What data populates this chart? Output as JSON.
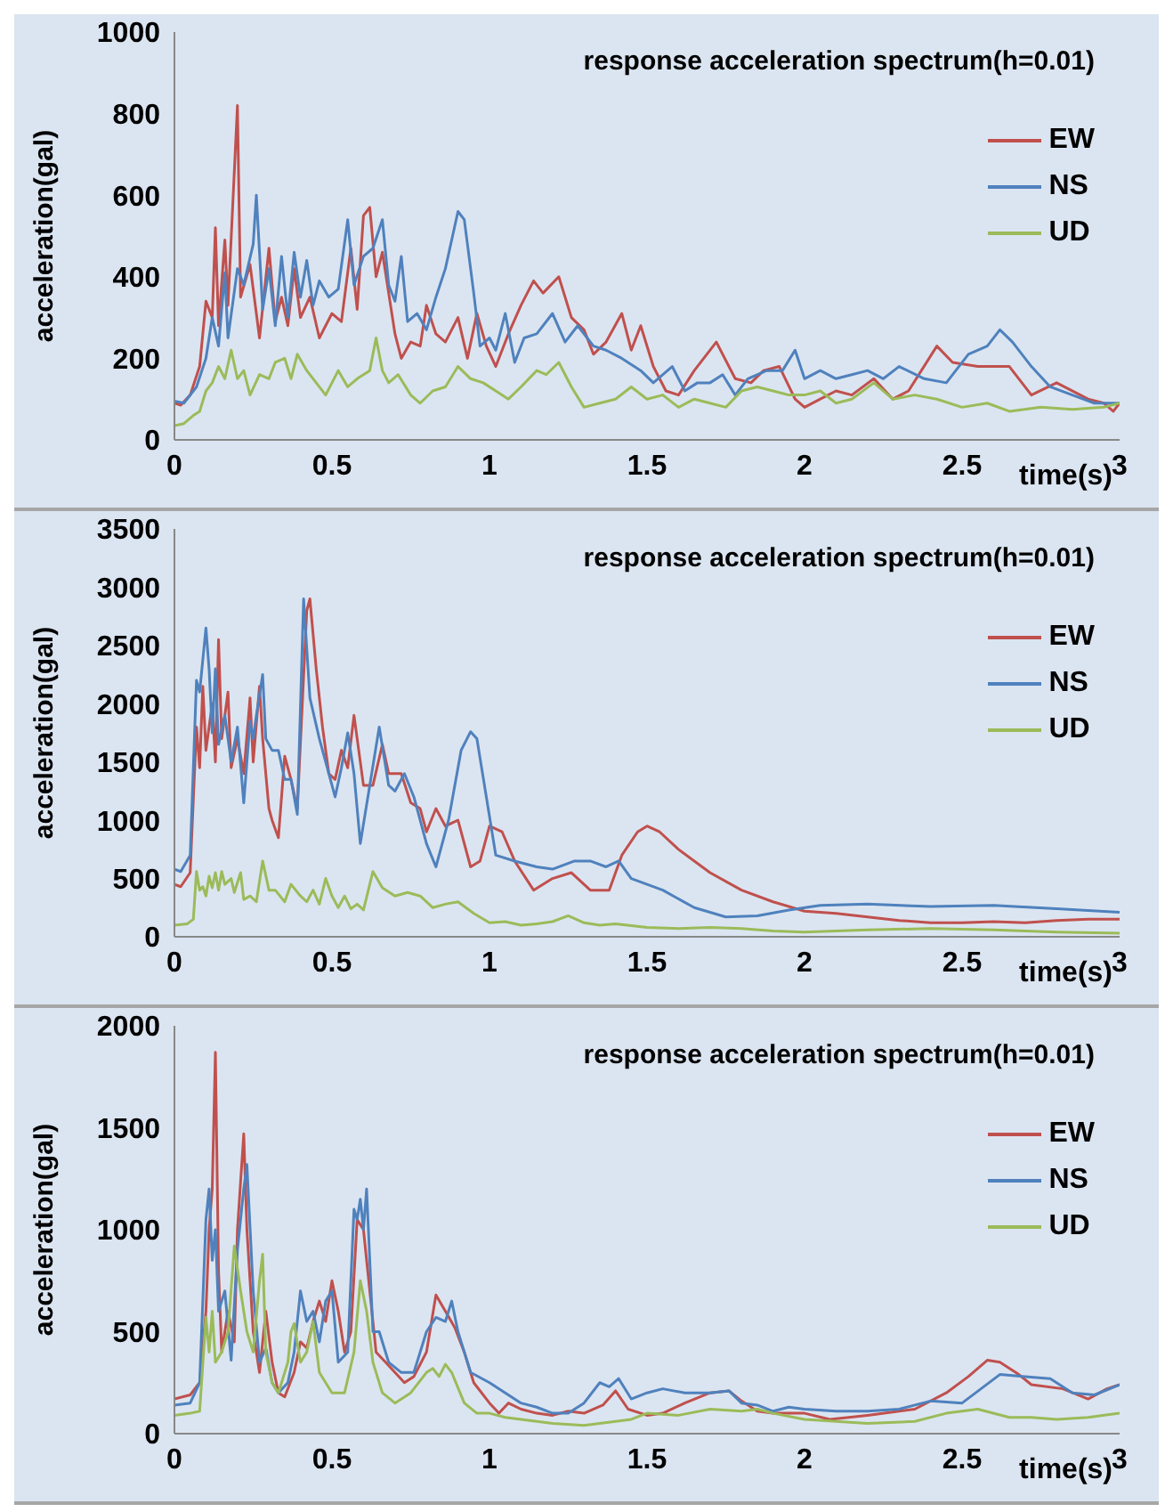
{
  "chart_data": [
    {
      "type": "line",
      "title": "response acceleration spectrum(h=0.01)",
      "xlabel": "time(s)",
      "ylabel": "acceleration(gal)",
      "xlim": [
        0,
        3
      ],
      "xticks": [
        0,
        0.5,
        1,
        1.5,
        2,
        2.5,
        3
      ],
      "ylim": [
        0,
        1000
      ],
      "yticks": [
        0,
        200,
        400,
        600,
        800,
        1000
      ],
      "legend": "top right",
      "marker": "none",
      "series": [
        {
          "name": "EW",
          "color": "#c0504d",
          "x": [
            0,
            0.02,
            0.05,
            0.08,
            0.1,
            0.12,
            0.13,
            0.14,
            0.16,
            0.17,
            0.2,
            0.21,
            0.24,
            0.27,
            0.3,
            0.32,
            0.34,
            0.36,
            0.38,
            0.4,
            0.43,
            0.46,
            0.5,
            0.53,
            0.56,
            0.58,
            0.6,
            0.62,
            0.64,
            0.66,
            0.68,
            0.7,
            0.72,
            0.75,
            0.78,
            0.8,
            0.83,
            0.86,
            0.9,
            0.93,
            0.96,
            0.99,
            1.02,
            1.06,
            1.1,
            1.14,
            1.17,
            1.22,
            1.26,
            1.3,
            1.33,
            1.37,
            1.42,
            1.45,
            1.48,
            1.52,
            1.56,
            1.6,
            1.65,
            1.72,
            1.78,
            1.83,
            1.87,
            1.92,
            1.97,
            2.0,
            2.05,
            2.1,
            2.15,
            2.22,
            2.28,
            2.33,
            2.42,
            2.47,
            2.55,
            2.65,
            2.72,
            2.8,
            2.9,
            2.95,
            2.98,
            3.0
          ],
          "values": [
            90,
            85,
            110,
            180,
            340,
            300,
            520,
            280,
            490,
            330,
            820,
            350,
            430,
            250,
            470,
            290,
            350,
            280,
            420,
            300,
            350,
            250,
            310,
            290,
            470,
            320,
            550,
            570,
            400,
            460,
            360,
            260,
            200,
            240,
            230,
            330,
            260,
            240,
            300,
            200,
            310,
            230,
            180,
            260,
            330,
            390,
            360,
            400,
            300,
            270,
            210,
            240,
            310,
            220,
            280,
            180,
            120,
            110,
            170,
            240,
            150,
            140,
            170,
            180,
            100,
            80,
            100,
            120,
            110,
            150,
            100,
            120,
            230,
            190,
            180,
            180,
            110,
            140,
            100,
            90,
            70,
            90
          ]
        },
        {
          "name": "NS",
          "color": "#4f81bd",
          "x": [
            0,
            0.03,
            0.07,
            0.1,
            0.12,
            0.14,
            0.16,
            0.17,
            0.2,
            0.22,
            0.25,
            0.26,
            0.28,
            0.3,
            0.32,
            0.34,
            0.36,
            0.38,
            0.4,
            0.42,
            0.44,
            0.46,
            0.49,
            0.52,
            0.55,
            0.57,
            0.6,
            0.63,
            0.66,
            0.68,
            0.7,
            0.72,
            0.74,
            0.77,
            0.8,
            0.83,
            0.86,
            0.9,
            0.92,
            0.95,
            0.97,
            1.0,
            1.02,
            1.05,
            1.08,
            1.11,
            1.15,
            1.2,
            1.24,
            1.28,
            1.33,
            1.37,
            1.42,
            1.48,
            1.52,
            1.58,
            1.62,
            1.66,
            1.7,
            1.74,
            1.78,
            1.82,
            1.88,
            1.93,
            1.97,
            2.0,
            2.05,
            2.1,
            2.15,
            2.2,
            2.25,
            2.3,
            2.38,
            2.45,
            2.52,
            2.58,
            2.62,
            2.66,
            2.72,
            2.78,
            2.85,
            2.92,
            3.0
          ],
          "values": [
            95,
            90,
            130,
            200,
            300,
            230,
            410,
            250,
            420,
            380,
            480,
            600,
            320,
            420,
            280,
            450,
            300,
            460,
            350,
            440,
            330,
            390,
            350,
            370,
            540,
            380,
            450,
            470,
            540,
            380,
            340,
            450,
            290,
            310,
            270,
            350,
            420,
            560,
            540,
            360,
            230,
            250,
            220,
            310,
            190,
            250,
            260,
            310,
            240,
            280,
            230,
            220,
            200,
            170,
            140,
            180,
            120,
            140,
            140,
            160,
            110,
            150,
            170,
            170,
            220,
            150,
            170,
            150,
            160,
            170,
            150,
            180,
            150,
            140,
            210,
            230,
            270,
            240,
            180,
            130,
            110,
            90,
            90
          ]
        },
        {
          "name": "UD",
          "color": "#9bbb59",
          "x": [
            0,
            0.03,
            0.06,
            0.08,
            0.1,
            0.12,
            0.14,
            0.16,
            0.18,
            0.2,
            0.22,
            0.24,
            0.27,
            0.3,
            0.32,
            0.35,
            0.37,
            0.39,
            0.42,
            0.45,
            0.48,
            0.5,
            0.52,
            0.55,
            0.58,
            0.62,
            0.64,
            0.66,
            0.68,
            0.71,
            0.75,
            0.78,
            0.82,
            0.86,
            0.9,
            0.94,
            0.98,
            1.02,
            1.06,
            1.1,
            1.15,
            1.18,
            1.22,
            1.26,
            1.3,
            1.35,
            1.4,
            1.45,
            1.5,
            1.55,
            1.6,
            1.65,
            1.7,
            1.75,
            1.8,
            1.85,
            1.9,
            1.95,
            2.0,
            2.05,
            2.1,
            2.15,
            2.22,
            2.28,
            2.35,
            2.42,
            2.5,
            2.58,
            2.65,
            2.75,
            2.85,
            2.95,
            3.0
          ],
          "values": [
            35,
            40,
            60,
            70,
            120,
            140,
            180,
            150,
            220,
            150,
            170,
            110,
            160,
            150,
            190,
            200,
            150,
            210,
            170,
            140,
            110,
            140,
            170,
            130,
            150,
            170,
            250,
            170,
            140,
            160,
            110,
            90,
            120,
            130,
            180,
            150,
            140,
            120,
            100,
            130,
            170,
            160,
            190,
            130,
            80,
            90,
            100,
            130,
            100,
            110,
            80,
            100,
            90,
            80,
            120,
            130,
            120,
            110,
            110,
            120,
            90,
            100,
            140,
            100,
            110,
            100,
            80,
            90,
            70,
            80,
            75,
            80,
            90
          ]
        }
      ]
    },
    {
      "type": "line",
      "title": "response acceleration spectrum(h=0.01)",
      "xlabel": "time(s)",
      "ylabel": "acceleration(gal)",
      "xlim": [
        0,
        3
      ],
      "xticks": [
        0,
        0.5,
        1,
        1.5,
        2,
        2.5,
        3
      ],
      "ylim": [
        0,
        3500
      ],
      "yticks": [
        0,
        500,
        1000,
        1500,
        2000,
        2500,
        3000,
        3500
      ],
      "legend": "top right",
      "marker": "none",
      "series": [
        {
          "name": "EW",
          "color": "#c0504d",
          "x": [
            0,
            0.02,
            0.05,
            0.07,
            0.08,
            0.09,
            0.1,
            0.12,
            0.13,
            0.14,
            0.15,
            0.17,
            0.18,
            0.2,
            0.22,
            0.24,
            0.25,
            0.27,
            0.28,
            0.3,
            0.31,
            0.33,
            0.35,
            0.37,
            0.39,
            0.42,
            0.43,
            0.45,
            0.47,
            0.49,
            0.51,
            0.53,
            0.55,
            0.57,
            0.6,
            0.63,
            0.66,
            0.68,
            0.72,
            0.75,
            0.78,
            0.8,
            0.83,
            0.86,
            0.9,
            0.94,
            0.97,
            1.0,
            1.04,
            1.08,
            1.14,
            1.2,
            1.26,
            1.32,
            1.38,
            1.42,
            1.47,
            1.5,
            1.54,
            1.6,
            1.7,
            1.8,
            1.9,
            2.0,
            2.1,
            2.2,
            2.3,
            2.4,
            2.5,
            2.6,
            2.7,
            2.8,
            2.9,
            3.0
          ],
          "values": [
            450,
            430,
            550,
            1800,
            1450,
            2150,
            1600,
            2000,
            1500,
            2550,
            1700,
            2100,
            1450,
            1700,
            1400,
            2050,
            1500,
            2150,
            1700,
            1100,
            1000,
            850,
            1550,
            1350,
            1100,
            2800,
            2900,
            2300,
            1800,
            1400,
            1350,
            1600,
            1450,
            1900,
            1300,
            1300,
            1650,
            1400,
            1400,
            1150,
            1100,
            900,
            1100,
            950,
            1000,
            600,
            650,
            950,
            900,
            650,
            400,
            500,
            550,
            400,
            400,
            700,
            900,
            950,
            900,
            750,
            550,
            400,
            300,
            220,
            200,
            170,
            140,
            120,
            120,
            130,
            120,
            140,
            150,
            150
          ]
        },
        {
          "name": "NS",
          "color": "#4f81bd",
          "x": [
            0,
            0.02,
            0.05,
            0.07,
            0.08,
            0.1,
            0.11,
            0.12,
            0.13,
            0.14,
            0.16,
            0.18,
            0.2,
            0.22,
            0.24,
            0.25,
            0.26,
            0.28,
            0.29,
            0.31,
            0.33,
            0.35,
            0.37,
            0.39,
            0.41,
            0.43,
            0.46,
            0.48,
            0.51,
            0.53,
            0.55,
            0.57,
            0.59,
            0.62,
            0.65,
            0.68,
            0.7,
            0.73,
            0.76,
            0.8,
            0.83,
            0.87,
            0.91,
            0.94,
            0.96,
            0.99,
            1.02,
            1.08,
            1.15,
            1.2,
            1.27,
            1.32,
            1.37,
            1.41,
            1.45,
            1.55,
            1.65,
            1.75,
            1.85,
            1.95,
            2.05,
            2.2,
            2.4,
            2.6,
            2.8,
            3.0
          ],
          "values": [
            580,
            560,
            700,
            2200,
            2100,
            2650,
            2300,
            1750,
            2300,
            1650,
            1900,
            1500,
            1800,
            1150,
            1850,
            1700,
            1900,
            2250,
            1700,
            1600,
            1600,
            1350,
            1350,
            1050,
            2900,
            2050,
            1700,
            1500,
            1200,
            1450,
            1750,
            1400,
            800,
            1300,
            1800,
            1300,
            1250,
            1400,
            1200,
            800,
            600,
            1000,
            1600,
            1760,
            1700,
            1200,
            700,
            650,
            600,
            580,
            650,
            650,
            600,
            650,
            500,
            400,
            250,
            170,
            180,
            230,
            270,
            280,
            260,
            270,
            240,
            210
          ]
        },
        {
          "name": "UD",
          "color": "#9bbb59",
          "x": [
            0,
            0.04,
            0.06,
            0.07,
            0.08,
            0.09,
            0.1,
            0.11,
            0.12,
            0.13,
            0.14,
            0.15,
            0.16,
            0.18,
            0.19,
            0.21,
            0.22,
            0.24,
            0.26,
            0.28,
            0.3,
            0.32,
            0.35,
            0.37,
            0.4,
            0.42,
            0.44,
            0.46,
            0.48,
            0.5,
            0.52,
            0.54,
            0.56,
            0.58,
            0.6,
            0.63,
            0.66,
            0.7,
            0.74,
            0.78,
            0.82,
            0.86,
            0.9,
            0.95,
            1.0,
            1.05,
            1.1,
            1.15,
            1.2,
            1.25,
            1.3,
            1.35,
            1.4,
            1.5,
            1.6,
            1.7,
            1.8,
            1.9,
            2.0,
            2.2,
            2.4,
            2.6,
            2.8,
            3.0
          ],
          "values": [
            100,
            110,
            150,
            560,
            400,
            430,
            350,
            520,
            420,
            550,
            400,
            560,
            450,
            500,
            380,
            550,
            320,
            350,
            300,
            650,
            400,
            400,
            300,
            450,
            350,
            300,
            400,
            280,
            500,
            350,
            250,
            350,
            240,
            280,
            230,
            560,
            420,
            350,
            380,
            350,
            250,
            280,
            300,
            200,
            120,
            130,
            100,
            110,
            130,
            180,
            120,
            100,
            110,
            80,
            70,
            80,
            70,
            50,
            40,
            60,
            70,
            60,
            40,
            30
          ]
        }
      ]
    },
    {
      "type": "line",
      "title": "response acceleration spectrum(h=0.01)",
      "xlabel": "time(s)",
      "ylabel": "acceleration(gal)",
      "xlim": [
        0,
        3
      ],
      "xticks": [
        0,
        0.5,
        1,
        1.5,
        2,
        2.5,
        3
      ],
      "ylim": [
        0,
        2000
      ],
      "yticks": [
        0,
        500,
        1000,
        1500,
        2000
      ],
      "legend": "top right",
      "marker": "none",
      "series": [
        {
          "name": "EW",
          "color": "#c0504d",
          "x": [
            0,
            0.05,
            0.08,
            0.1,
            0.11,
            0.12,
            0.13,
            0.14,
            0.15,
            0.17,
            0.19,
            0.2,
            0.22,
            0.23,
            0.25,
            0.27,
            0.29,
            0.31,
            0.33,
            0.35,
            0.38,
            0.4,
            0.42,
            0.44,
            0.46,
            0.48,
            0.5,
            0.52,
            0.54,
            0.56,
            0.58,
            0.6,
            0.62,
            0.64,
            0.67,
            0.7,
            0.73,
            0.76,
            0.8,
            0.83,
            0.86,
            0.89,
            0.92,
            0.95,
            1.0,
            1.03,
            1.06,
            1.1,
            1.15,
            1.2,
            1.25,
            1.3,
            1.36,
            1.4,
            1.44,
            1.5,
            1.55,
            1.62,
            1.7,
            1.76,
            1.8,
            1.85,
            1.9,
            2.0,
            2.08,
            2.2,
            2.35,
            2.45,
            2.52,
            2.58,
            2.62,
            2.68,
            2.72,
            2.82,
            2.9,
            2.96,
            3.0
          ],
          "values": [
            170,
            190,
            250,
            600,
            1000,
            1200,
            1870,
            800,
            400,
            600,
            450,
            1000,
            1470,
            1000,
            500,
            300,
            600,
            350,
            200,
            180,
            300,
            450,
            420,
            550,
            650,
            550,
            750,
            600,
            400,
            500,
            1050,
            1000,
            700,
            400,
            350,
            300,
            250,
            280,
            400,
            680,
            600,
            520,
            400,
            250,
            150,
            100,
            150,
            120,
            100,
            90,
            110,
            100,
            140,
            210,
            120,
            90,
            100,
            150,
            200,
            210,
            160,
            110,
            100,
            100,
            70,
            90,
            120,
            200,
            280,
            360,
            350,
            290,
            240,
            220,
            170,
            220,
            240
          ]
        },
        {
          "name": "NS",
          "color": "#4f81bd",
          "x": [
            0,
            0.05,
            0.08,
            0.1,
            0.11,
            0.12,
            0.13,
            0.14,
            0.16,
            0.18,
            0.2,
            0.22,
            0.23,
            0.25,
            0.27,
            0.29,
            0.31,
            0.33,
            0.36,
            0.38,
            0.4,
            0.42,
            0.44,
            0.46,
            0.48,
            0.5,
            0.52,
            0.55,
            0.57,
            0.58,
            0.59,
            0.6,
            0.61,
            0.63,
            0.65,
            0.68,
            0.72,
            0.76,
            0.8,
            0.83,
            0.86,
            0.88,
            0.9,
            0.94,
            1.0,
            1.05,
            1.1,
            1.15,
            1.2,
            1.25,
            1.3,
            1.35,
            1.38,
            1.41,
            1.45,
            1.5,
            1.55,
            1.62,
            1.7,
            1.76,
            1.8,
            1.85,
            1.9,
            1.95,
            2.0,
            2.1,
            2.2,
            2.3,
            2.4,
            2.5,
            2.56,
            2.62,
            2.7,
            2.78,
            2.85,
            2.92,
            3.0
          ],
          "values": [
            140,
            150,
            250,
            1050,
            1200,
            850,
            1000,
            600,
            700,
            360,
            900,
            1200,
            1320,
            700,
            350,
            420,
            250,
            200,
            250,
            400,
            700,
            550,
            600,
            450,
            650,
            700,
            350,
            400,
            1100,
            1050,
            1150,
            1000,
            1200,
            500,
            500,
            350,
            300,
            300,
            500,
            570,
            550,
            650,
            500,
            300,
            250,
            200,
            150,
            130,
            100,
            100,
            150,
            250,
            230,
            270,
            170,
            200,
            220,
            200,
            200,
            210,
            150,
            140,
            110,
            130,
            120,
            110,
            110,
            120,
            160,
            150,
            220,
            290,
            280,
            270,
            200,
            190,
            240
          ]
        },
        {
          "name": "UD",
          "color": "#9bbb59",
          "x": [
            0,
            0.05,
            0.08,
            0.1,
            0.11,
            0.12,
            0.13,
            0.15,
            0.17,
            0.19,
            0.21,
            0.23,
            0.25,
            0.27,
            0.28,
            0.29,
            0.31,
            0.33,
            0.36,
            0.37,
            0.38,
            0.4,
            0.42,
            0.44,
            0.46,
            0.48,
            0.5,
            0.54,
            0.57,
            0.59,
            0.61,
            0.63,
            0.66,
            0.7,
            0.75,
            0.8,
            0.82,
            0.84,
            0.86,
            0.88,
            0.92,
            0.96,
            1.0,
            1.05,
            1.1,
            1.2,
            1.3,
            1.4,
            1.45,
            1.5,
            1.6,
            1.7,
            1.8,
            1.85,
            1.9,
            2.0,
            2.1,
            2.2,
            2.35,
            2.45,
            2.55,
            2.65,
            2.72,
            2.8,
            2.9,
            3.0
          ],
          "values": [
            90,
            100,
            110,
            570,
            400,
            600,
            350,
            400,
            500,
            920,
            700,
            500,
            400,
            750,
            880,
            400,
            250,
            200,
            350,
            500,
            540,
            350,
            400,
            550,
            300,
            250,
            200,
            200,
            400,
            750,
            600,
            350,
            200,
            150,
            200,
            300,
            320,
            280,
            340,
            300,
            150,
            100,
            100,
            80,
            70,
            50,
            40,
            60,
            70,
            100,
            90,
            120,
            110,
            120,
            100,
            70,
            60,
            50,
            60,
            100,
            120,
            80,
            80,
            70,
            80,
            100
          ]
        }
      ]
    }
  ]
}
